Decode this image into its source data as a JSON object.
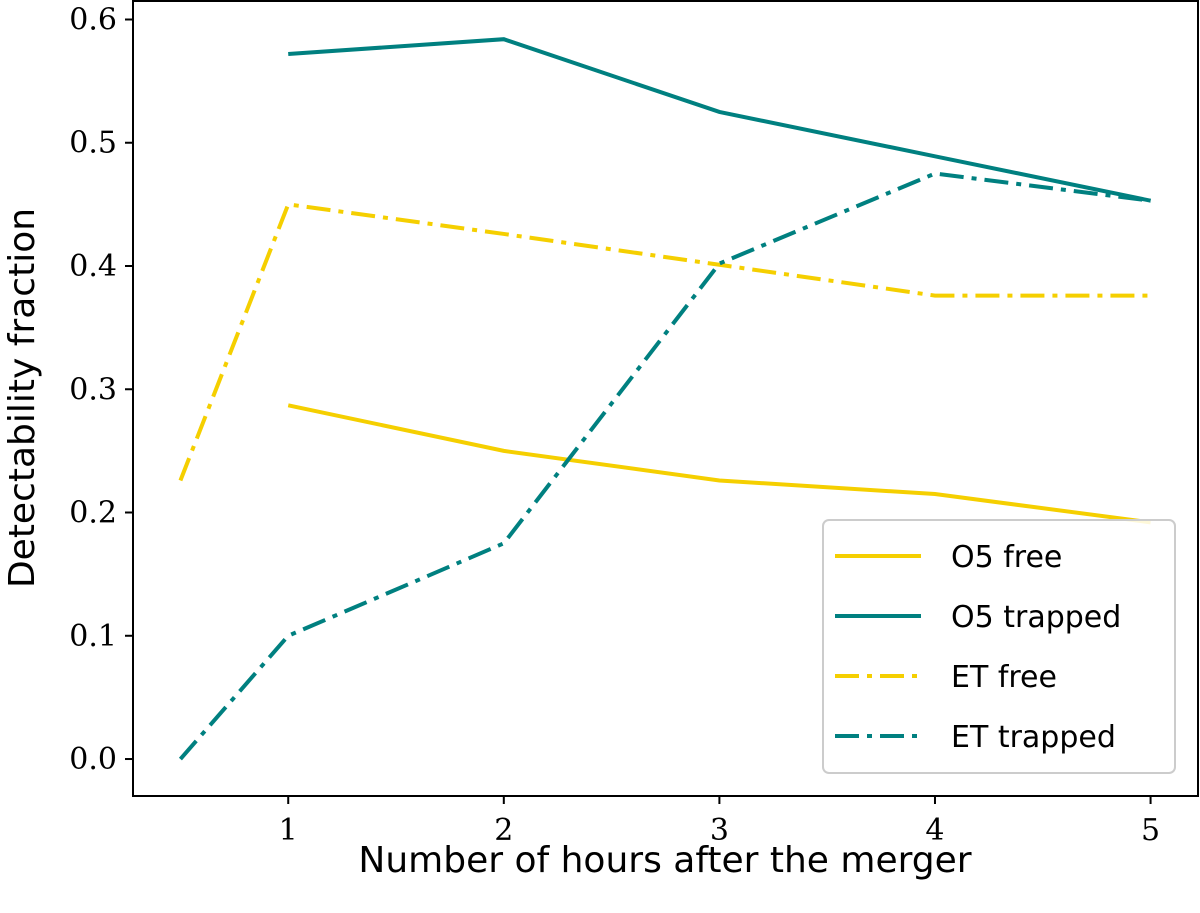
{
  "chart_data": {
    "type": "line",
    "x_label": "Number of hours after the merger",
    "y_label": "Detectability fraction",
    "x": [
      0.5,
      1,
      2,
      3,
      4,
      5
    ],
    "series": [
      {
        "name": "O5 free",
        "color": "#f5cf00",
        "linestyle": "solid",
        "values": [
          null,
          0.287,
          0.25,
          0.226,
          0.215,
          0.192
        ]
      },
      {
        "name": "O5 trapped",
        "color": "#008080",
        "linestyle": "solid",
        "values": [
          null,
          0.572,
          0.584,
          0.525,
          0.489,
          0.453
        ]
      },
      {
        "name": "ET free",
        "color": "#f5cf00",
        "linestyle": "dashdot",
        "values": [
          0.226,
          0.45,
          0.426,
          0.401,
          0.376,
          0.376
        ]
      },
      {
        "name": "ET trapped",
        "color": "#008080",
        "linestyle": "dashdot",
        "values": [
          0,
          0.1,
          0.175,
          0.402,
          0.475,
          0.453
        ]
      }
    ],
    "xlim": [
      0.28,
      5.22
    ],
    "xticks": [
      1,
      2,
      3,
      4,
      5
    ],
    "ylim": [
      -0.03,
      0.615
    ],
    "yticks": [
      {
        "value": 0,
        "label": "0.0"
      },
      0.1,
      0.2,
      0.3,
      0.4,
      0.5,
      0.6
    ],
    "legend": "lower right"
  }
}
